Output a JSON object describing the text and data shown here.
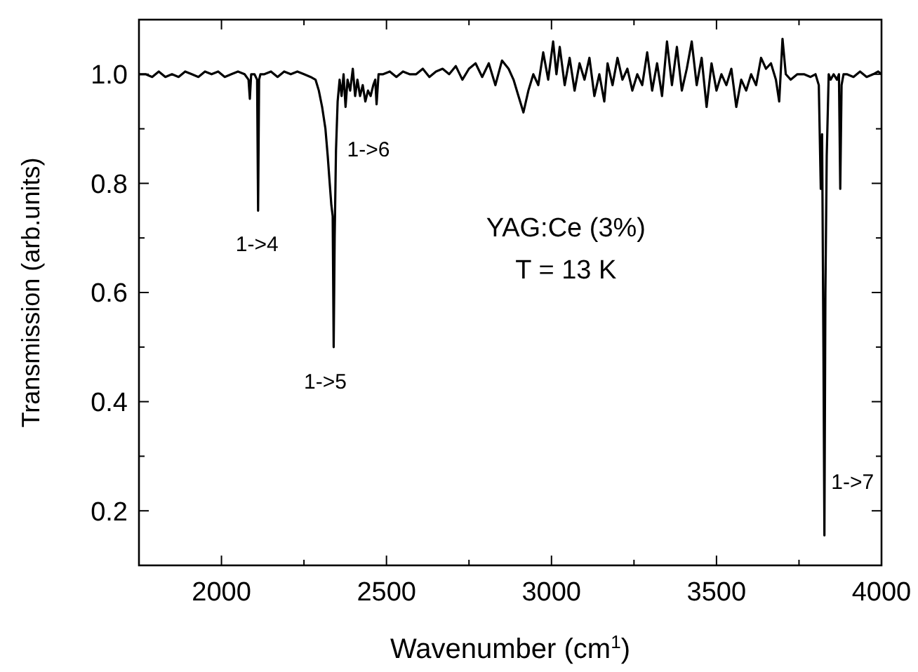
{
  "chart_data": {
    "type": "line",
    "xlabel": "Wavenumber (cm$^{1}$)",
    "ylabel": "Transmission (arb.units)",
    "xlim": [
      1750,
      4000
    ],
    "xticks": [
      2000,
      2500,
      3000,
      3500,
      4000
    ],
    "ylim": [
      0.1,
      1.1
    ],
    "yticks": [
      0.2,
      0.4,
      0.6,
      0.8,
      {
        "value": 1,
        "label": "1.0"
      }
    ],
    "marker": "none",
    "line_style": "solid",
    "series": [
      {
        "color": "#000000",
        "x": [
          1750,
          1770,
          1790,
          1810,
          1830,
          1850,
          1870,
          1890,
          1910,
          1930,
          1950,
          1970,
          1990,
          2010,
          2030,
          2050,
          2070,
          2082,
          2086,
          2090,
          2100,
          2108,
          2111,
          2114,
          2118,
          2130,
          2150,
          2170,
          2190,
          2210,
          2230,
          2250,
          2270,
          2285,
          2295,
          2305,
          2315,
          2322,
          2328,
          2333,
          2337,
          2340,
          2343,
          2347,
          2352,
          2358,
          2364,
          2370,
          2376,
          2382,
          2390,
          2398,
          2405,
          2412,
          2420,
          2428,
          2436,
          2444,
          2452,
          2460,
          2466,
          2470,
          2476,
          2490,
          2510,
          2530,
          2550,
          2570,
          2590,
          2610,
          2630,
          2650,
          2670,
          2690,
          2710,
          2730,
          2750,
          2770,
          2790,
          2810,
          2830,
          2850,
          2870,
          2885,
          2900,
          2915,
          2930,
          2945,
          2960,
          2975,
          2990,
          3005,
          3015,
          3025,
          3040,
          3055,
          3070,
          3085,
          3100,
          3115,
          3130,
          3145,
          3160,
          3170,
          3185,
          3200,
          3215,
          3230,
          3245,
          3260,
          3275,
          3290,
          3305,
          3320,
          3335,
          3350,
          3365,
          3380,
          3395,
          3410,
          3425,
          3440,
          3455,
          3470,
          3485,
          3500,
          3515,
          3530,
          3545,
          3560,
          3575,
          3590,
          3605,
          3620,
          3635,
          3650,
          3665,
          3680,
          3690,
          3700,
          3710,
          3725,
          3745,
          3765,
          3785,
          3800,
          3810,
          3816,
          3820,
          3824,
          3827,
          3830,
          3834,
          3840,
          3846,
          3855,
          3865,
          3871,
          3875,
          3879,
          3885,
          3895,
          3915,
          3935,
          3955,
          3975,
          3990,
          4000
        ],
        "values": [
          1.0,
          1.0,
          0.995,
          1.005,
          0.995,
          1.0,
          0.995,
          1.005,
          1.0,
          0.995,
          1.005,
          1.0,
          1.005,
          0.995,
          1.0,
          1.005,
          1.0,
          0.99,
          0.955,
          1.0,
          1.0,
          0.99,
          0.75,
          0.99,
          1.0,
          1.0,
          1.005,
          0.995,
          1.005,
          1.0,
          1.005,
          1.0,
          0.995,
          0.99,
          0.97,
          0.94,
          0.9,
          0.85,
          0.8,
          0.76,
          0.74,
          0.5,
          0.7,
          0.86,
          0.95,
          0.99,
          0.96,
          1.0,
          0.94,
          0.99,
          0.97,
          1.01,
          0.96,
          0.99,
          0.96,
          0.98,
          0.95,
          0.97,
          0.96,
          0.98,
          0.99,
          0.945,
          1.0,
          1.0,
          1.005,
          0.995,
          1.005,
          1.0,
          1.0,
          1.01,
          0.995,
          1.005,
          1.01,
          1.0,
          1.015,
          0.99,
          1.01,
          1.02,
          0.995,
          1.02,
          0.98,
          1.025,
          1.01,
          0.99,
          0.96,
          0.93,
          0.97,
          1.0,
          0.98,
          1.04,
          0.99,
          1.06,
          1.0,
          1.05,
          0.98,
          1.03,
          0.97,
          1.02,
          0.99,
          1.03,
          0.96,
          1.0,
          0.95,
          1.02,
          0.98,
          1.03,
          0.99,
          1.01,
          0.97,
          1.0,
          0.98,
          1.04,
          0.97,
          1.02,
          0.96,
          1.06,
          0.98,
          1.05,
          0.97,
          1.01,
          1.06,
          0.98,
          1.03,
          0.94,
          1.02,
          0.97,
          1.0,
          0.98,
          1.01,
          0.94,
          0.99,
          0.97,
          1.0,
          0.98,
          1.03,
          1.01,
          1.02,
          0.99,
          0.95,
          1.065,
          1.0,
          0.99,
          1.0,
          1.0,
          0.995,
          1.0,
          0.98,
          0.79,
          0.89,
          0.5,
          0.155,
          0.6,
          0.85,
          1.0,
          0.99,
          1.0,
          0.99,
          1.0,
          0.79,
          0.98,
          1.0,
          1.0,
          0.995,
          1.005,
          0.995,
          1.0,
          1.005,
          1.0
        ]
      }
    ],
    "annotations": [
      "1->4",
      "1->5",
      "1->6",
      "1->7",
      "YAG:Ce (3%)",
      "T = 13 K"
    ]
  }
}
